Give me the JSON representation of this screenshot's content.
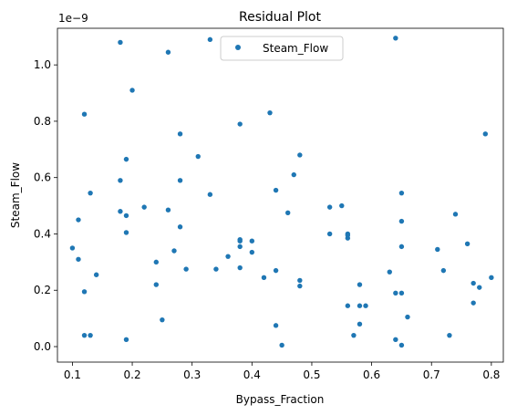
{
  "chart_data": {
    "type": "scatter",
    "title": "Residual Plot",
    "xlabel": "Bypass_Fraction",
    "ylabel": "Steam_Flow",
    "y_scale_label": "1e−9",
    "xlim": [
      0.075,
      0.82
    ],
    "ylim": [
      -0.055,
      1.13
    ],
    "x_ticks": [
      0.1,
      0.2,
      0.3,
      0.4,
      0.5,
      0.6,
      0.7,
      0.8
    ],
    "x_tick_labels": [
      "0.1",
      "0.2",
      "0.3",
      "0.4",
      "0.5",
      "0.6",
      "0.7",
      "0.8"
    ],
    "y_ticks": [
      0.0,
      0.2,
      0.4,
      0.6,
      0.8,
      1.0
    ],
    "y_tick_labels": [
      "0.0",
      "0.2",
      "0.4",
      "0.6",
      "0.8",
      "1.0"
    ],
    "grid": false,
    "legend_position": "top-center",
    "color": "#1f77b4",
    "series": [
      {
        "name": "Steam_Flow",
        "x": [
          0.1,
          0.11,
          0.11,
          0.12,
          0.12,
          0.12,
          0.13,
          0.13,
          0.14,
          0.18,
          0.18,
          0.18,
          0.19,
          0.19,
          0.19,
          0.19,
          0.2,
          0.22,
          0.24,
          0.24,
          0.25,
          0.26,
          0.26,
          0.27,
          0.28,
          0.28,
          0.28,
          0.29,
          0.31,
          0.33,
          0.33,
          0.34,
          0.36,
          0.38,
          0.38,
          0.38,
          0.38,
          0.38,
          0.4,
          0.4,
          0.42,
          0.43,
          0.44,
          0.44,
          0.44,
          0.45,
          0.46,
          0.47,
          0.48,
          0.48,
          0.48,
          0.53,
          0.53,
          0.55,
          0.56,
          0.56,
          0.56,
          0.56,
          0.57,
          0.58,
          0.58,
          0.58,
          0.59,
          0.63,
          0.64,
          0.64,
          0.64,
          0.65,
          0.65,
          0.65,
          0.65,
          0.65,
          0.66,
          0.71,
          0.72,
          0.73,
          0.74,
          0.76,
          0.77,
          0.77,
          0.78,
          0.79,
          0.8
        ],
        "y": [
          0.35,
          0.45,
          0.31,
          0.825,
          0.195,
          0.04,
          0.545,
          0.04,
          0.255,
          1.08,
          0.59,
          0.48,
          0.665,
          0.465,
          0.405,
          0.025,
          0.91,
          0.495,
          0.3,
          0.22,
          0.095,
          1.045,
          0.485,
          0.34,
          0.755,
          0.59,
          0.425,
          0.275,
          0.675,
          1.09,
          0.54,
          0.275,
          0.32,
          0.79,
          0.38,
          0.355,
          0.28,
          0.375,
          0.335,
          0.375,
          0.245,
          0.83,
          0.555,
          0.27,
          0.075,
          0.005,
          0.475,
          0.61,
          0.68,
          0.235,
          0.215,
          0.495,
          0.4,
          0.5,
          0.385,
          0.4,
          0.395,
          0.145,
          0.04,
          0.22,
          0.08,
          0.145,
          0.145,
          0.265,
          1.095,
          0.025,
          0.19,
          0.545,
          0.445,
          0.355,
          0.19,
          0.005,
          0.105,
          0.345,
          0.27,
          0.04,
          0.47,
          0.365,
          0.225,
          0.155,
          0.21,
          0.755,
          0.245
        ]
      }
    ]
  }
}
